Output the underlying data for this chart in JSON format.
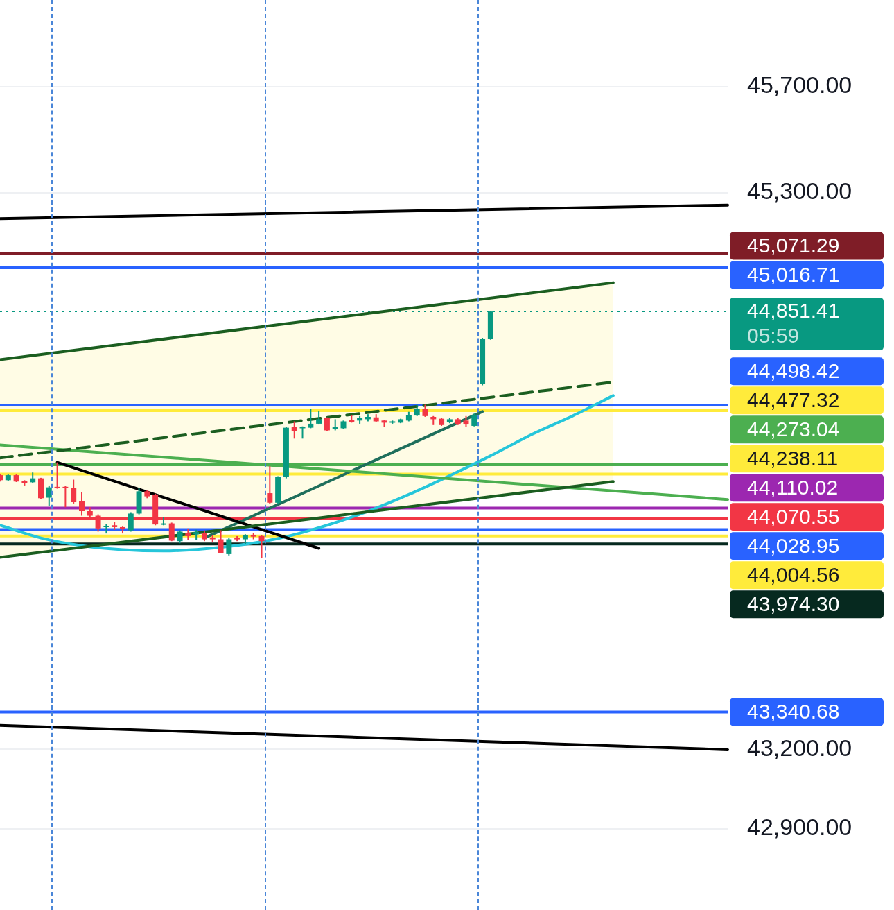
{
  "chart_data": {
    "type": "candlestick",
    "categories": [
      null,
      null,
      null,
      null,
      null,
      null,
      null,
      null,
      null,
      null,
      null,
      null,
      null,
      null,
      null,
      null,
      null,
      null,
      null,
      null,
      null,
      null,
      null,
      null,
      null,
      null,
      null,
      null,
      null,
      null,
      null,
      null,
      null,
      null,
      null,
      null,
      null,
      null,
      null,
      null,
      null,
      null,
      null,
      null,
      null,
      null,
      null,
      null,
      null,
      null,
      null,
      null,
      null,
      null,
      null,
      null,
      null,
      null,
      null,
      null,
      null,
      null,
      null,
      null,
      null,
      null,
      null,
      null,
      null,
      null,
      null,
      null,
      null,
      null,
      null,
      null,
      null,
      null,
      null,
      null,
      null,
      null,
      null,
      null,
      null,
      null,
      null,
      null,
      null,
      null
    ],
    "ohlc": [
      [
        44234,
        44239,
        44210,
        44215
      ],
      [
        44215,
        44237,
        44213,
        44234
      ],
      [
        44234,
        44237,
        44208,
        44210
      ],
      [
        44212,
        44215,
        44195,
        44205
      ],
      [
        44207,
        44244,
        44205,
        44222
      ],
      [
        44222,
        44224,
        44145,
        44147
      ],
      [
        44149,
        44195,
        44118,
        44188
      ],
      [
        44190,
        44282,
        44183,
        44185
      ],
      [
        44190,
        44193,
        44113,
        44185
      ],
      [
        44185,
        44217,
        44127,
        44132
      ],
      [
        44135,
        44171,
        44081,
        44098
      ],
      [
        44098,
        44113,
        44074,
        44081
      ],
      [
        44081,
        44086,
        44021,
        44033
      ],
      [
        44038,
        44050,
        44014,
        44043
      ],
      [
        44045,
        44057,
        44028,
        44038
      ],
      [
        44038,
        44040,
        44014,
        44031
      ],
      [
        44026,
        44094,
        44021,
        44089
      ],
      [
        44089,
        44185,
        44086,
        44173
      ],
      [
        44173,
        44178,
        44147,
        44154
      ],
      [
        44161,
        44164,
        44045,
        44048
      ],
      [
        44048,
        44077,
        44045,
        44052
      ],
      [
        44052,
        44055,
        43985,
        43987
      ],
      [
        43985,
        44026,
        43977,
        44021
      ],
      [
        44016,
        44033,
        43990,
        44004
      ],
      [
        44011,
        44028,
        43990,
        44019
      ],
      [
        44016,
        44026,
        43985,
        43992
      ],
      [
        43999,
        44009,
        43980,
        43992
      ],
      [
        43992,
        44026,
        43939,
        43941
      ],
      [
        43936,
        43997,
        43931,
        43992
      ],
      [
        43997,
        44004,
        43985,
        43992
      ],
      [
        43992,
        44011,
        43973,
        44009
      ],
      [
        44009,
        44016,
        43992,
        44002
      ],
      [
        44004,
        44007,
        43920,
        43985
      ],
      [
        44166,
        44268,
        44125,
        44130
      ],
      [
        44130,
        44230,
        44125,
        44227
      ],
      [
        44227,
        44416,
        44222,
        44413
      ],
      [
        44415,
        44437,
        44372,
        44401
      ],
      [
        44413,
        44418,
        44372,
        44416
      ],
      [
        44413,
        44483,
        44411,
        44428
      ],
      [
        44428,
        44476,
        44425,
        44445
      ],
      [
        44449,
        44452,
        44401,
        44403
      ],
      [
        44408,
        44445,
        44403,
        44416
      ],
      [
        44411,
        44440,
        44408,
        44437
      ],
      [
        44442,
        44461,
        44432,
        44435
      ],
      [
        44440,
        44457,
        44428,
        44449
      ],
      [
        44445,
        44464,
        44437,
        44454
      ],
      [
        44452,
        44464,
        44435,
        44437
      ],
      [
        44440,
        44442,
        44415,
        44432
      ],
      [
        44432,
        44440,
        44428,
        44437
      ],
      [
        44432,
        44447,
        44430,
        44445
      ],
      [
        44440,
        44473,
        44437,
        44461
      ],
      [
        44459,
        44500,
        44457,
        44485
      ],
      [
        44483,
        44500,
        44454,
        44457
      ],
      [
        44454,
        44457,
        44423,
        44445
      ],
      [
        44447,
        44449,
        44420,
        44423
      ],
      [
        44433,
        44449,
        44430,
        44445
      ],
      [
        44445,
        44449,
        44423,
        44425
      ],
      [
        44440,
        44457,
        44415,
        44425
      ],
      [
        44420,
        44466,
        44418,
        44459
      ],
      [
        44578,
        44752,
        44573,
        44747
      ],
      [
        44747,
        44853,
        44745,
        44851.41
      ],
      null,
      null,
      null,
      null,
      null,
      null,
      null,
      null,
      null,
      null,
      null,
      null,
      null,
      null,
      null,
      null,
      null,
      null,
      null,
      null,
      null,
      null,
      null,
      null,
      null,
      null,
      null,
      null,
      null
    ],
    "colors": [
      "#f23645",
      "#089981",
      "#f23645",
      "#f23645",
      "#089981",
      "#f23645",
      "#089981",
      "#f23645",
      "#f23645",
      "#f23645",
      "#f23645",
      "#f23645",
      "#f23645",
      "#089981",
      "#f23645",
      "#f23645",
      "#089981",
      "#089981",
      "#f23645",
      "#f23645",
      "#089981",
      "#f23645",
      "#089981",
      "#f23645",
      "#089981",
      "#f23645",
      "#f23645",
      "#f23645",
      "#089981",
      "#f23645",
      "#089981",
      "#f23645",
      "#f23645",
      "#f23645",
      "#089981",
      "#089981",
      "#f23645",
      "#089981",
      "#089981",
      "#089981",
      "#f23645",
      "#089981",
      "#089981",
      "#f23645",
      "#089981",
      "#089981",
      "#f23645",
      "#f23645",
      "#089981",
      "#089981",
      "#089981",
      "#089981",
      "#f23645",
      "#f23645",
      "#f23645",
      "#089981",
      "#f23645",
      "#f23645",
      "#089981",
      "#089981",
      "#089981",
      null,
      null,
      null,
      null,
      null,
      null,
      null,
      null,
      null,
      null,
      null,
      null,
      null,
      null,
      null,
      null,
      null,
      null,
      null,
      null,
      null,
      null,
      null,
      null,
      null,
      null,
      null,
      null,
      null
    ],
    "series": [
      {
        "type": "line",
        "color": "#000000",
        "values": [
          45202,
          null,
          null,
          null,
          null,
          null,
          null,
          null,
          null,
          null,
          null,
          null,
          null,
          null,
          null,
          null,
          null,
          null,
          null,
          null,
          null,
          null,
          null,
          null,
          null,
          null,
          null,
          null,
          null,
          null,
          null,
          null,
          null,
          null,
          null,
          null,
          null,
          null,
          null,
          null,
          null,
          null,
          null,
          null,
          null,
          null,
          null,
          null,
          null,
          null,
          null,
          null,
          null,
          null,
          null,
          null,
          null,
          null,
          null,
          null,
          null,
          null,
          null,
          null,
          null,
          null,
          null,
          null,
          null,
          null,
          null,
          null,
          null,
          null,
          null,
          null,
          null,
          null,
          null,
          null,
          null,
          null,
          null,
          null,
          null,
          null,
          null,
          null,
          null,
          45253
        ]
      },
      {
        "type": "line",
        "color": "#000000",
        "values": [
          43290,
          null,
          null,
          null,
          null,
          null,
          null,
          null,
          null,
          null,
          null,
          null,
          null,
          null,
          null,
          null,
          null,
          null,
          null,
          null,
          null,
          null,
          null,
          null,
          null,
          null,
          null,
          null,
          null,
          null,
          null,
          null,
          null,
          null,
          null,
          null,
          null,
          null,
          null,
          null,
          null,
          null,
          null,
          null,
          null,
          null,
          null,
          null,
          null,
          null,
          null,
          null,
          null,
          null,
          null,
          null,
          null,
          null,
          null,
          null,
          null,
          null,
          null,
          null,
          null,
          null,
          null,
          null,
          null,
          null,
          null,
          null,
          null,
          null,
          null,
          null,
          null,
          null,
          null,
          null,
          null,
          null,
          null,
          null,
          null,
          null,
          null,
          null,
          null,
          43198
        ]
      },
      {
        "type": "line",
        "color": "#1b5e20",
        "line_style": "dashed",
        "values": [
          44299,
          null,
          null,
          null,
          null,
          null,
          null,
          null,
          null,
          null,
          null,
          null,
          null,
          null,
          null,
          null,
          null,
          null,
          null,
          null,
          null,
          null,
          null,
          null,
          null,
          null,
          null,
          null,
          null,
          null,
          null,
          null,
          null,
          null,
          null,
          null,
          null,
          null,
          null,
          null,
          null,
          null,
          null,
          null,
          null,
          null,
          null,
          null,
          null,
          null,
          null,
          null,
          null,
          null,
          null,
          null,
          null,
          null,
          null,
          null,
          null,
          null,
          null,
          null,
          null,
          null,
          null,
          null,
          null,
          null,
          null,
          null,
          null,
          null,
          null,
          44585,
          null,
          null,
          null,
          null,
          null,
          null,
          null,
          null,
          null,
          null,
          null,
          null,
          null,
          null
        ],
        "lower": [
          43924,
          null,
          null,
          null,
          null,
          null,
          null,
          null,
          null,
          null,
          null,
          null,
          null,
          null,
          null,
          null,
          null,
          null,
          null,
          null,
          null,
          null,
          null,
          null,
          null,
          null,
          null,
          null,
          null,
          null,
          null,
          null,
          null,
          null,
          null,
          null,
          null,
          null,
          null,
          null,
          null,
          null,
          null,
          null,
          null,
          null,
          null,
          null,
          null,
          null,
          null,
          null,
          null,
          null,
          null,
          null,
          null,
          null,
          null,
          null,
          null,
          null,
          null,
          null,
          null,
          null,
          null,
          null,
          null,
          null,
          null,
          null,
          null,
          null,
          null,
          44210,
          null,
          null,
          null,
          null,
          null,
          null,
          null,
          null,
          null,
          null,
          null,
          null,
          null,
          null
        ],
        "upper": [
          44670,
          null,
          null,
          null,
          null,
          null,
          null,
          null,
          null,
          null,
          null,
          null,
          null,
          null,
          null,
          null,
          null,
          null,
          null,
          null,
          null,
          null,
          null,
          null,
          null,
          null,
          null,
          null,
          null,
          null,
          null,
          null,
          null,
          null,
          null,
          null,
          null,
          null,
          null,
          null,
          null,
          null,
          null,
          null,
          null,
          null,
          null,
          null,
          null,
          null,
          null,
          null,
          null,
          null,
          null,
          null,
          null,
          null,
          null,
          null,
          null,
          null,
          null,
          null,
          null,
          null,
          null,
          null,
          null,
          null,
          null,
          null,
          null,
          null,
          null,
          44960,
          null,
          null,
          null,
          null,
          null,
          null,
          null,
          null,
          null,
          null,
          null,
          null,
          null,
          null
        ]
      },
      {
        "type": "line",
        "color": "#1b5e20",
        "values": [
          43924,
          null,
          null,
          null,
          null,
          null,
          null,
          null,
          null,
          null,
          null,
          null,
          null,
          null,
          null,
          null,
          null,
          null,
          null,
          null,
          null,
          null,
          null,
          null,
          null,
          null,
          null,
          null,
          null,
          null,
          null,
          null,
          null,
          null,
          null,
          null,
          null,
          null,
          null,
          null,
          null,
          null,
          null,
          null,
          null,
          null,
          null,
          null,
          null,
          null,
          null,
          null,
          null,
          null,
          null,
          null,
          null,
          null,
          null,
          null,
          null,
          null,
          null,
          null,
          null,
          null,
          null,
          null,
          null,
          null,
          null,
          null,
          null,
          null,
          null,
          44210,
          null,
          null,
          null,
          null,
          null,
          null,
          null,
          null,
          null,
          null,
          null,
          null,
          null,
          null
        ]
      },
      {
        "type": "line",
        "color": "#1b5e20",
        "values": [
          44670,
          null,
          null,
          null,
          null,
          null,
          null,
          null,
          null,
          null,
          null,
          null,
          null,
          null,
          null,
          null,
          null,
          null,
          null,
          null,
          null,
          null,
          null,
          null,
          null,
          null,
          null,
          null,
          null,
          null,
          null,
          null,
          null,
          null,
          null,
          null,
          null,
          null,
          null,
          null,
          null,
          null,
          null,
          null,
          null,
          null,
          null,
          null,
          null,
          null,
          null,
          null,
          null,
          null,
          null,
          null,
          null,
          null,
          null,
          null,
          null,
          null,
          null,
          null,
          null,
          null,
          null,
          null,
          null,
          null,
          null,
          null,
          null,
          null,
          null,
          44960,
          null,
          null,
          null,
          null,
          null,
          null,
          null,
          null,
          null,
          null,
          null,
          null,
          null,
          null
        ]
      },
      {
        "type": "line",
        "color": "#4caf50",
        "values": [
          44348,
          null,
          null,
          null,
          null,
          null,
          null,
          null,
          null,
          null,
          null,
          null,
          null,
          null,
          null,
          null,
          null,
          null,
          null,
          null,
          null,
          null,
          null,
          null,
          null,
          null,
          null,
          null,
          null,
          null,
          null,
          null,
          null,
          null,
          null,
          null,
          null,
          null,
          null,
          null,
          null,
          null,
          null,
          null,
          null,
          null,
          null,
          null,
          null,
          null,
          null,
          null,
          null,
          null,
          null,
          null,
          null,
          null,
          null,
          null,
          null,
          null,
          null,
          null,
          null,
          null,
          null,
          null,
          null,
          null,
          null,
          null,
          null,
          null,
          null,
          null,
          null,
          null,
          null,
          null,
          null,
          null,
          null,
          null,
          null,
          null,
          null,
          null,
          null,
          44142
        ]
      },
      {
        "type": "line",
        "color": "#000000",
        "values": [
          null,
          null,
          null,
          null,
          null,
          null,
          null,
          44282,
          null,
          null,
          null,
          null,
          null,
          null,
          null,
          null,
          null,
          null,
          null,
          null,
          null,
          null,
          null,
          null,
          null,
          null,
          null,
          null,
          null,
          null,
          null,
          null,
          null,
          null,
          null,
          null,
          null,
          null,
          null,
          43958,
          null,
          null,
          null,
          null,
          null,
          null,
          null,
          null,
          null,
          null,
          null,
          null,
          null,
          null,
          null,
          null,
          null,
          null,
          null,
          null,
          null,
          null,
          null,
          null,
          null,
          null,
          null,
          null,
          null,
          null,
          null,
          null,
          null,
          null,
          null,
          null,
          null,
          null,
          null,
          null,
          null,
          null,
          null,
          null,
          null,
          null,
          null,
          null,
          null,
          null
        ]
      },
      {
        "type": "line",
        "color": "#1f6f5c",
        "values": [
          null,
          null,
          null,
          null,
          null,
          null,
          null,
          null,
          null,
          null,
          null,
          null,
          null,
          null,
          null,
          null,
          null,
          null,
          null,
          null,
          null,
          null,
          null,
          null,
          null,
          43997,
          null,
          null,
          null,
          null,
          null,
          null,
          null,
          null,
          null,
          null,
          null,
          null,
          null,
          null,
          null,
          null,
          null,
          null,
          null,
          null,
          null,
          null,
          null,
          null,
          null,
          null,
          null,
          null,
          null,
          null,
          null,
          null,
          null,
          44474,
          null,
          null,
          null,
          null,
          null,
          null,
          null,
          null,
          null,
          null,
          null,
          null,
          null,
          null,
          null,
          null,
          null,
          null,
          null,
          null,
          null,
          null,
          null,
          null,
          null,
          null,
          null,
          null,
          null,
          null
        ]
      },
      {
        "type": "line",
        "color": "#26c6da",
        "values": [
          44045,
          null,
          null,
          null,
          null,
          43997,
          null,
          null,
          null,
          null,
          43968,
          null,
          null,
          null,
          null,
          43953,
          null,
          null,
          null,
          null,
          43948,
          null,
          null,
          null,
          null,
          43956,
          null,
          null,
          null,
          null,
          43973,
          null,
          null,
          null,
          null,
          44002,
          null,
          null,
          null,
          null,
          44045,
          null,
          null,
          null,
          null,
          44098,
          null,
          null,
          null,
          null,
          44161,
          null,
          null,
          null,
          null,
          44232,
          null,
          null,
          null,
          null,
          44307,
          null,
          null,
          null,
          null,
          44387,
          null,
          null,
          null,
          null,
          44457,
          null,
          null,
          null,
          null,
          44534,
          null,
          null,
          null,
          null,
          null,
          null,
          null,
          null,
          null,
          null,
          null,
          null,
          null,
          null
        ]
      }
    ],
    "ref_lines": [
      {
        "axis": "y",
        "value": 45071.29,
        "label": "45,071.29",
        "color": "#7f1d27"
      },
      {
        "axis": "y",
        "value": 45016.71,
        "label": "45,016.71",
        "color": "#2962ff"
      },
      {
        "axis": "y",
        "value": 44851.41,
        "label": "44,851.41",
        "color": "#089981",
        "line_style": "dotted"
      },
      {
        "axis": "y",
        "value": 44498.42,
        "label": "44,498.42",
        "color": "#2962ff"
      },
      {
        "axis": "y",
        "value": 44477.32,
        "label": "44,477.32",
        "color": "#ffeb3b"
      },
      {
        "axis": "y",
        "value": 44273.04,
        "label": "44,273.04",
        "color": "#4caf50"
      },
      {
        "axis": "y",
        "value": 44238.11,
        "label": "44,238.11",
        "color": "#ffeb3b"
      },
      {
        "axis": "y",
        "value": 44110.02,
        "label": "44,110.02",
        "color": "#9c27b0"
      },
      {
        "axis": "y",
        "value": 44070.55,
        "label": "44,070.55",
        "color": "#f23645"
      },
      {
        "axis": "y",
        "value": 44028.95,
        "label": "44,028.95",
        "color": "#2962ff"
      },
      {
        "axis": "y",
        "value": 44004.56,
        "label": "44,004.56",
        "color": "#ffeb3b"
      },
      {
        "axis": "y",
        "value": 43974.3,
        "label": "43,974.30",
        "color": "#06291f"
      },
      {
        "axis": "y",
        "value": 43340.68,
        "label": "43,340.68",
        "color": "#2962ff"
      }
    ],
    "annotations": [
      "05:59"
    ],
    "ylim": [
      42720,
      45900
    ],
    "yticks": [
      {
        "value": 42900,
        "label": "42,900.00"
      },
      {
        "value": 43200,
        "label": "43,200.00"
      },
      {
        "value": 45300,
        "label": "45,300.00"
      },
      {
        "value": 45700,
        "label": "45,700.00"
      }
    ],
    "grid": "y",
    "tick_labels": "y"
  }
}
